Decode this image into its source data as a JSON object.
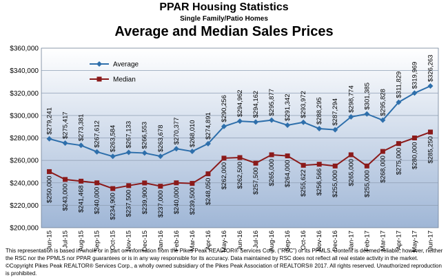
{
  "header": {
    "title": "PPAR Housing Statistics",
    "subtitle": "Single Family/Patio Homes",
    "chart_title": "Average and Median Sales Prices"
  },
  "footer": {
    "note": "This representation is based in whole or in part on information from the Pikes Peak REALTOR® Services Corp. (\"RSC\") or its PPMLS.  Content is deemed reliable; however, neither the RSC nor the PPMLS nor PPAR guarantees or is in any way responsible for its accuracy.  Data maintained by RSC does not reflect all real estate activity in the market.  ©Copyright Pikes Peak REALTOR® Services Corp., a wholly owned subsidiary of the Pikes Peak Association of REALTORS® 2017.  All rights reserved.  Unauthorized reproduction is prohibited."
  },
  "colors": {
    "average": "#2e6fab",
    "median": "#8b1a1a",
    "plot_top": "#ffffff",
    "plot_bottom": "#9fb6d6",
    "grid": "#8d9db3"
  },
  "chart_data": {
    "type": "line",
    "categories": [
      "Jun-15",
      "Jul-15",
      "Aug-15",
      "Sep-15",
      "Oct-15",
      "Nov-15",
      "Dec-15",
      "Jan-16",
      "Feb-16",
      "Mar-16",
      "Apr-16",
      "May-16",
      "Jun-16",
      "Jul-16",
      "Aug-16",
      "Sep-16",
      "Oct-16",
      "Nov-16",
      "Dec-16",
      "Jan-17",
      "Feb-17",
      "Mar-17",
      "Apr-17",
      "May-17",
      "Jun-17"
    ],
    "series": [
      {
        "name": "Average",
        "values": [
          279241,
          275417,
          273381,
          267612,
          263584,
          267133,
          266553,
          263678,
          270377,
          268010,
          274891,
          290256,
          294962,
          294162,
          295877,
          291342,
          293972,
          288295,
          287294,
          298774,
          301385,
          295828,
          311829,
          319969,
          326263
        ],
        "labels": [
          "$279,241",
          "$275,417",
          "$273,381",
          "$267,612",
          "$263,584",
          "$267,133",
          "$266,553",
          "$263,678",
          "$270,377",
          "$268,010",
          "$274,891",
          "$290,256",
          "$294,962",
          "$294,162",
          "$295,877",
          "$291,342",
          "$293,972",
          "$288,295",
          "$287,294",
          "$298,774",
          "$301,385",
          "$295,828",
          "$311,829",
          "$319,969",
          "$326,263"
        ]
      },
      {
        "name": "Median",
        "values": [
          250000,
          243000,
          241468,
          240000,
          234900,
          237500,
          239900,
          237000,
          240000,
          239500,
          248050,
          262000,
          262500,
          257500,
          265000,
          264000,
          255622,
          256566,
          255000,
          265000,
          255000,
          268000,
          275000,
          280000,
          285250
        ],
        "labels": [
          "$250,000",
          "$243,000",
          "$241,468",
          "$240,000",
          "$234,900",
          "$237,500",
          "$239,900",
          "$237,000",
          "$240,000",
          "$239,500",
          "$248,050",
          "$262,000",
          "$262,500",
          "$257,500",
          "$265,000",
          "$264,000",
          "$255,622",
          "$256,566",
          "$255,000",
          "$265,000",
          "$255,000",
          "$268,000",
          "$275,000",
          "$280,000",
          "$285,250"
        ]
      }
    ],
    "ylim": [
      200000,
      360000
    ],
    "ytick_step": 20000,
    "yticks": [
      "$200,000",
      "$220,000",
      "$240,000",
      "$260,000",
      "$280,000",
      "$300,000",
      "$320,000",
      "$340,000",
      "$360,000"
    ],
    "grid": true,
    "legend_position": "top-left"
  }
}
